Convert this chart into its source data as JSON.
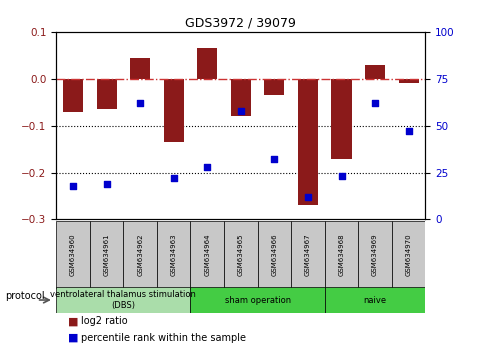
{
  "title": "GDS3972 / 39079",
  "samples": [
    "GSM634960",
    "GSM634961",
    "GSM634962",
    "GSM634963",
    "GSM634964",
    "GSM634965",
    "GSM634966",
    "GSM634967",
    "GSM634968",
    "GSM634969",
    "GSM634970"
  ],
  "log2_ratio": [
    -0.07,
    -0.065,
    0.045,
    -0.135,
    0.065,
    -0.08,
    -0.035,
    -0.27,
    -0.17,
    0.03,
    -0.01
  ],
  "percentile_rank": [
    18,
    19,
    62,
    22,
    28,
    58,
    32,
    12,
    23,
    62,
    47
  ],
  "bar_color": "#8B1A1A",
  "dot_color": "#0000CD",
  "dashed_line_color": "#CC3333",
  "ylim_left": [
    -0.3,
    0.1
  ],
  "ylim_right": [
    0,
    100
  ],
  "yticks_left": [
    -0.3,
    -0.2,
    -0.1,
    0.0,
    0.1
  ],
  "yticks_right": [
    0,
    25,
    50,
    75,
    100
  ],
  "group_dbs_label": "ventrolateral thalamus stimulation\n(DBS)",
  "group_sham_label": "sham operation",
  "group_naive_label": "naive",
  "group_dbs_color": "#AADDAA",
  "group_sham_color": "#44CC44",
  "group_naive_color": "#44CC44",
  "group_dbs_indices": [
    0,
    3
  ],
  "group_sham_indices": [
    4,
    7
  ],
  "group_naive_indices": [
    8,
    10
  ],
  "protocol_label": "protocol",
  "legend_bar_label": "log2 ratio",
  "legend_dot_label": "percentile rank within the sample",
  "background_color": "#FFFFFF",
  "grid_dotted_values": [
    -0.1,
    -0.2
  ],
  "sample_box_color": "#C8C8C8"
}
